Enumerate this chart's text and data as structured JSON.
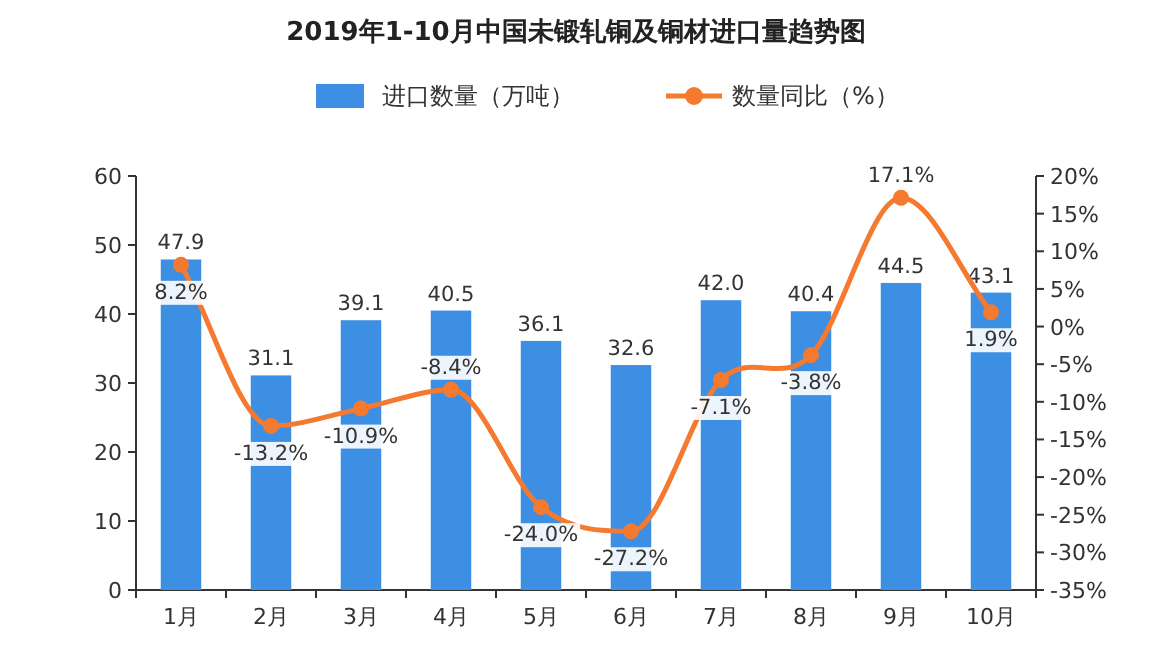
{
  "chart_data": {
    "type": "bar",
    "title": "2019年1-10月中国未锻轧铜及铜材进口量趋势图",
    "categories": [
      "1月",
      "2月",
      "3月",
      "4月",
      "5月",
      "6月",
      "7月",
      "8月",
      "9月",
      "10月"
    ],
    "series": [
      {
        "name": "进口数量（万吨）",
        "color": "#3d8fe3",
        "values": [
          47.9,
          31.1,
          39.1,
          40.5,
          36.1,
          32.6,
          42.0,
          40.4,
          44.5,
          43.1
        ],
        "value_labels": [
          "47.9",
          "31.1",
          "39.1",
          "40.5",
          "36.1",
          "32.6",
          "42.0",
          "40.4",
          "44.5",
          "43.1"
        ]
      },
      {
        "name": "数量同比（%）",
        "type": "line",
        "axis": "y2",
        "marker": "circle",
        "color": "#f47a30",
        "values": [
          8.2,
          -13.2,
          -10.9,
          -8.4,
          -24.0,
          -27.2,
          -7.1,
          -3.8,
          17.1,
          1.9
        ],
        "value_labels": [
          "8.2%",
          "-13.2%",
          "-10.9%",
          "-8.4%",
          "-24.0%",
          "-27.2%",
          "-7.1%",
          "-3.8%",
          "17.1%",
          "1.9%"
        ]
      }
    ],
    "ylim": [
      0,
      60
    ],
    "yticks": [
      0,
      10,
      20,
      30,
      40,
      50,
      60
    ],
    "y2lim": [
      -35,
      20
    ],
    "y2ticks": [
      {
        "value": -35,
        "label": "-35%"
      },
      {
        "value": -30,
        "label": "-30%"
      },
      {
        "value": -25,
        "label": "-25%"
      },
      {
        "value": -20,
        "label": "-20%"
      },
      {
        "value": -15,
        "label": "-15%"
      },
      {
        "value": -10,
        "label": "-10%"
      },
      {
        "value": -5,
        "label": "-5%"
      },
      {
        "value": 0,
        "label": "0%"
      },
      {
        "value": 5,
        "label": "5%"
      },
      {
        "value": 10,
        "label": "10%"
      },
      {
        "value": 15,
        "label": "15%"
      },
      {
        "value": 20,
        "label": "20%"
      }
    ],
    "legend": "top",
    "grid": false
  }
}
